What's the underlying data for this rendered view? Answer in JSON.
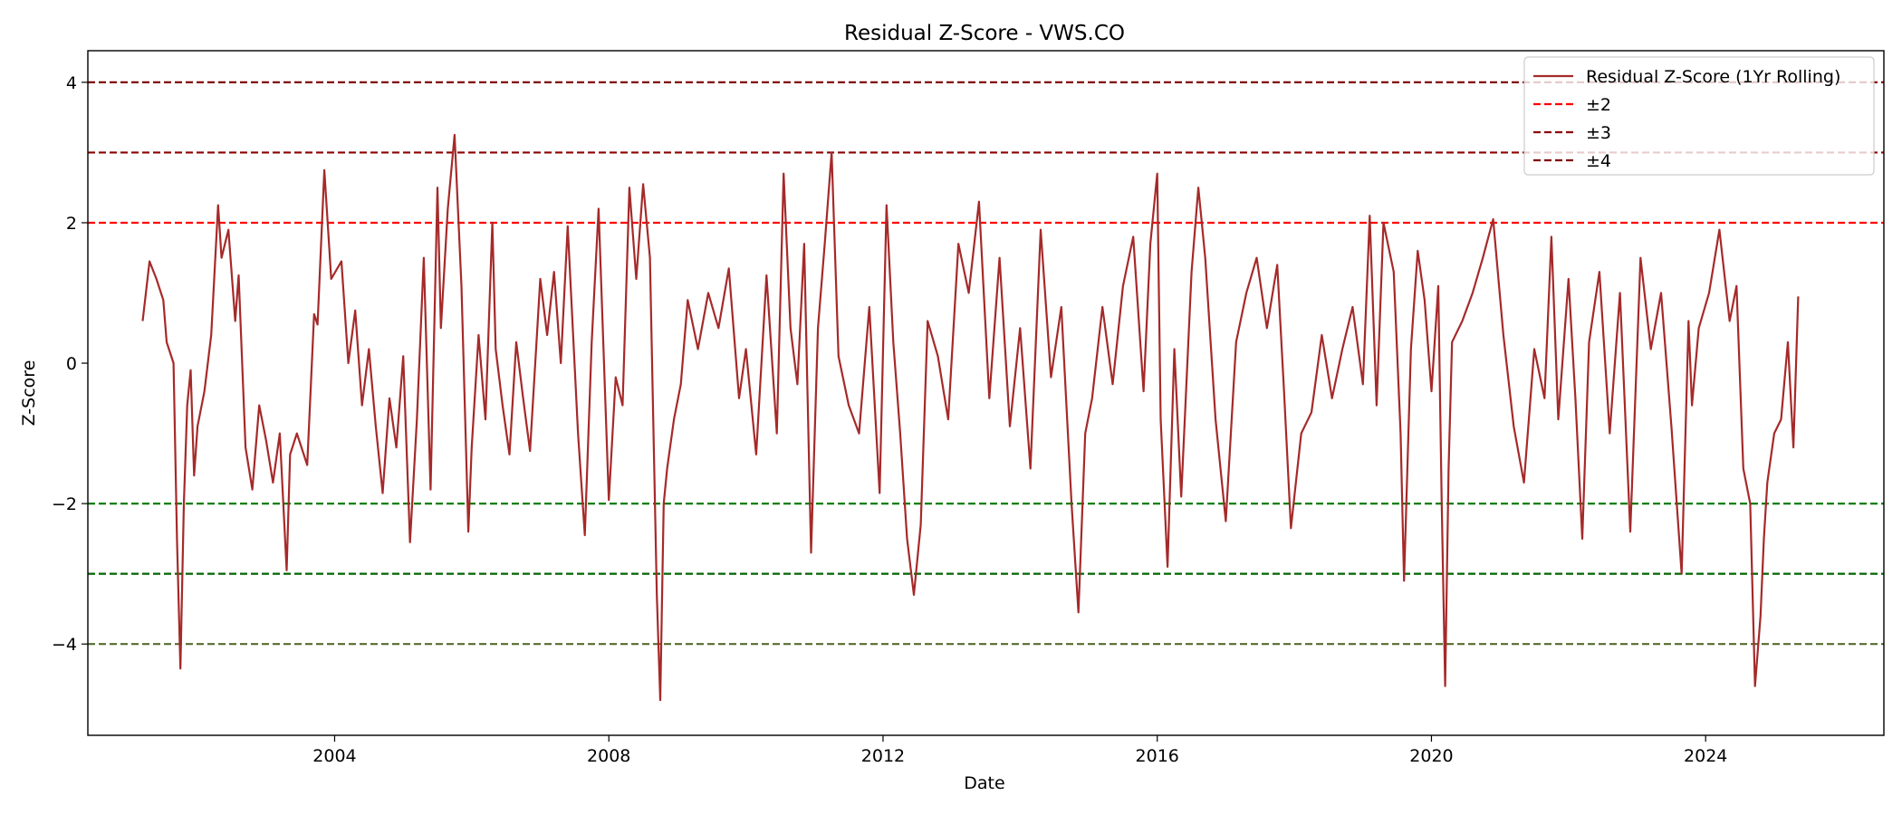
{
  "chart_data": {
    "type": "line",
    "title": "Residual Z-Score - VWS.CO",
    "xlabel": "Date",
    "ylabel": "Z-Score",
    "xlim": [
      2000.4,
      2026.6
    ],
    "ylim": [
      -5.3,
      4.45
    ],
    "x_ticks": [
      2004,
      2008,
      2012,
      2016,
      2020,
      2024
    ],
    "x_tick_labels": [
      "2004",
      "2008",
      "2012",
      "2016",
      "2020",
      "2024"
    ],
    "y_ticks": [
      4,
      2,
      0,
      -2,
      -4
    ],
    "y_tick_labels": [
      "4",
      "2",
      "0",
      "−2",
      "−4"
    ],
    "grid": false,
    "legend_position": "top-right",
    "series": [
      {
        "name": "Residual Z-Score (1Yr Rolling)",
        "color": "#a52a2a",
        "x": [
          2001.2,
          2001.3,
          2001.4,
          2001.5,
          2001.55,
          2001.65,
          2001.7,
          2001.75,
          2001.8,
          2001.85,
          2001.9,
          2001.95,
          2002.0,
          2002.1,
          2002.2,
          2002.3,
          2002.35,
          2002.45,
          2002.55,
          2002.6,
          2002.7,
          2002.8,
          2002.9,
          2003.0,
          2003.1,
          2003.2,
          2003.3,
          2003.35,
          2003.45,
          2003.6,
          2003.7,
          2003.75,
          2003.85,
          2003.95,
          2004.1,
          2004.2,
          2004.3,
          2004.4,
          2004.5,
          2004.6,
          2004.7,
          2004.8,
          2004.9,
          2005.0,
          2005.1,
          2005.2,
          2005.3,
          2005.4,
          2005.5,
          2005.55,
          2005.65,
          2005.75,
          2005.85,
          2005.95,
          2006.0,
          2006.1,
          2006.2,
          2006.3,
          2006.35,
          2006.45,
          2006.55,
          2006.65,
          2006.75,
          2006.85,
          2007.0,
          2007.1,
          2007.2,
          2007.3,
          2007.4,
          2007.55,
          2007.65,
          2007.75,
          2007.85,
          2008.0,
          2008.1,
          2008.2,
          2008.3,
          2008.4,
          2008.5,
          2008.6,
          2008.7,
          2008.75,
          2008.8,
          2008.85,
          2008.95,
          2009.05,
          2009.15,
          2009.3,
          2009.45,
          2009.6,
          2009.75,
          2009.9,
          2010.0,
          2010.15,
          2010.3,
          2010.45,
          2010.55,
          2010.65,
          2010.75,
          2010.85,
          2010.95,
          2011.05,
          2011.15,
          2011.25,
          2011.35,
          2011.5,
          2011.65,
          2011.8,
          2011.95,
          2012.05,
          2012.15,
          2012.25,
          2012.35,
          2012.45,
          2012.55,
          2012.65,
          2012.8,
          2012.95,
          2013.1,
          2013.25,
          2013.4,
          2013.55,
          2013.7,
          2013.85,
          2014.0,
          2014.15,
          2014.3,
          2014.45,
          2014.6,
          2014.75,
          2014.85,
          2014.95,
          2015.05,
          2015.2,
          2015.35,
          2015.5,
          2015.65,
          2015.8,
          2015.9,
          2016.0,
          2016.05,
          2016.15,
          2016.25,
          2016.35,
          2016.5,
          2016.6,
          2016.7,
          2016.85,
          2017.0,
          2017.15,
          2017.3,
          2017.45,
          2017.6,
          2017.75,
          2017.85,
          2017.95,
          2018.1,
          2018.25,
          2018.4,
          2018.55,
          2018.7,
          2018.85,
          2019.0,
          2019.1,
          2019.2,
          2019.3,
          2019.45,
          2019.55,
          2019.6,
          2019.7,
          2019.8,
          2019.9,
          2020.0,
          2020.1,
          2020.15,
          2020.2,
          2020.25,
          2020.3,
          2020.45,
          2020.6,
          2020.75,
          2020.9,
          2021.05,
          2021.2,
          2021.35,
          2021.5,
          2021.65,
          2021.75,
          2021.85,
          2022.0,
          2022.1,
          2022.2,
          2022.3,
          2022.45,
          2022.6,
          2022.75,
          2022.9,
          2023.05,
          2023.2,
          2023.35,
          2023.5,
          2023.65,
          2023.75,
          2023.8,
          2023.9,
          2024.05,
          2024.2,
          2024.35,
          2024.45,
          2024.55,
          2024.65,
          2024.72,
          2024.8,
          2024.85,
          2024.9,
          2025.0,
          2025.1,
          2025.2,
          2025.28,
          2025.35
        ],
        "y": [
          0.6,
          1.45,
          1.2,
          0.9,
          0.3,
          0.0,
          -2.5,
          -4.35,
          -2.0,
          -0.6,
          -0.1,
          -1.6,
          -0.9,
          -0.4,
          0.4,
          2.25,
          1.5,
          1.9,
          0.6,
          1.25,
          -1.2,
          -1.8,
          -0.6,
          -1.1,
          -1.7,
          -1.0,
          -2.95,
          -1.3,
          -1.0,
          -1.45,
          0.7,
          0.55,
          2.75,
          1.2,
          1.45,
          0.0,
          0.75,
          -0.6,
          0.2,
          -0.9,
          -1.85,
          -0.5,
          -1.2,
          0.1,
          -2.55,
          -0.8,
          1.5,
          -1.8,
          2.5,
          0.5,
          2.2,
          3.25,
          1.1,
          -2.4,
          -1.2,
          0.4,
          -0.8,
          2.0,
          0.2,
          -0.6,
          -1.3,
          0.3,
          -0.5,
          -1.25,
          1.2,
          0.4,
          1.3,
          0.0,
          1.95,
          -1.0,
          -2.45,
          0.3,
          2.2,
          -1.95,
          -0.2,
          -0.6,
          2.5,
          1.2,
          2.55,
          1.5,
          -3.3,
          -4.8,
          -2.0,
          -1.5,
          -0.8,
          -0.3,
          0.9,
          0.2,
          1.0,
          0.5,
          1.35,
          -0.5,
          0.2,
          -1.3,
          1.25,
          -1.0,
          2.7,
          0.5,
          -0.3,
          1.7,
          -2.7,
          0.5,
          1.7,
          3.0,
          0.1,
          -0.6,
          -1.0,
          0.8,
          -1.85,
          2.25,
          0.3,
          -1.0,
          -2.5,
          -3.3,
          -2.3,
          0.6,
          0.1,
          -0.8,
          1.7,
          1.0,
          2.3,
          -0.5,
          1.5,
          -0.9,
          0.5,
          -1.5,
          1.9,
          -0.2,
          0.8,
          -2.0,
          -3.55,
          -1.0,
          -0.5,
          0.8,
          -0.3,
          1.1,
          1.8,
          -0.4,
          1.7,
          2.7,
          -0.8,
          -2.9,
          0.2,
          -1.9,
          1.3,
          2.5,
          1.5,
          -0.8,
          -2.25,
          0.3,
          1.0,
          1.5,
          0.5,
          1.4,
          -0.4,
          -2.35,
          -1.0,
          -0.7,
          0.4,
          -0.5,
          0.2,
          0.8,
          -0.3,
          2.1,
          -0.6,
          2.0,
          1.3,
          -1.0,
          -3.1,
          0.2,
          1.6,
          0.9,
          -0.4,
          1.1,
          -2.0,
          -4.6,
          -1.5,
          0.3,
          0.6,
          1.0,
          1.5,
          2.05,
          0.4,
          -0.9,
          -1.7,
          0.2,
          -0.5,
          1.8,
          -0.8,
          1.2,
          -0.5,
          -2.5,
          0.3,
          1.3,
          -1.0,
          1.0,
          -2.4,
          1.5,
          0.2,
          1.0,
          -0.9,
          -3.0,
          0.6,
          -0.6,
          0.5,
          1.0,
          1.9,
          0.6,
          1.1,
          -1.5,
          -2.0,
          -4.6,
          -3.6,
          -2.5,
          -1.7,
          -1.0,
          -0.8,
          0.3,
          -1.2,
          0.95
        ]
      },
      {
        "name": "±2",
        "color": "#ff0000",
        "values": [
          2
        ]
      },
      {
        "name": "±3",
        "color": "#8b0000",
        "values": [
          3
        ]
      },
      {
        "name": "±4",
        "color": "#800000",
        "values": [
          4
        ]
      }
    ],
    "reference_lines": [
      {
        "y": 4,
        "color": "#800000"
      },
      {
        "y": 3,
        "color": "#8b0000"
      },
      {
        "y": 2,
        "color": "#ff0000"
      },
      {
        "y": -2,
        "color": "#008000"
      },
      {
        "y": -3,
        "color": "#006400"
      },
      {
        "y": -4,
        "color": "#556b2f"
      }
    ]
  }
}
